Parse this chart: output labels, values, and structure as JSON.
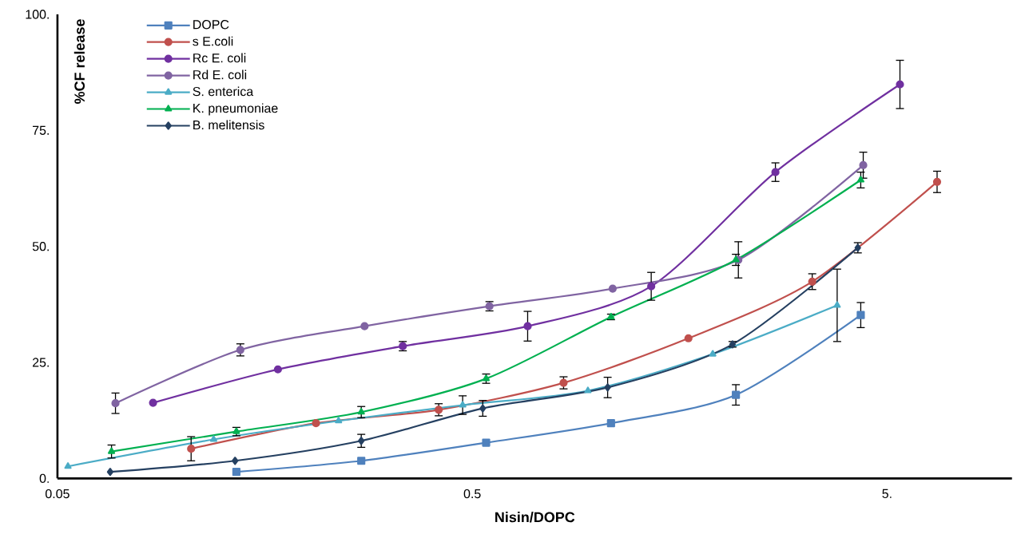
{
  "chart_data": {
    "type": "line",
    "xlabel": "Nisin/DOPC",
    "ylabel": "%CF release",
    "log": "x",
    "xlim": [
      0.05,
      10
    ],
    "xticks": [
      {
        "value": 0.05,
        "label": "0.05"
      },
      {
        "value": 0.5,
        "label": "0.5"
      },
      {
        "value": 5,
        "label": "5."
      }
    ],
    "ylim": [
      0,
      100
    ],
    "yticks": [
      {
        "value": 0,
        "label": "0."
      },
      {
        "value": 25,
        "label": "25."
      },
      {
        "value": 50,
        "label": "50."
      },
      {
        "value": 75,
        "label": "75."
      },
      {
        "value": 100,
        "label": "100."
      }
    ],
    "legend": "top left",
    "line_style": "solid",
    "series": [
      {
        "name": "DOPC",
        "color": "#4f81bd",
        "marker": "square",
        "x": [
          0.135,
          0.27,
          0.54,
          1.08,
          2.16,
          4.32
        ],
        "values": [
          1.4,
          3.8,
          7.7,
          11.9,
          18,
          35.2
        ],
        "errors": [
          null,
          null,
          null,
          null,
          2.2,
          2.7
        ]
      },
      {
        "name": "s E.coli",
        "color": "#c0504d",
        "marker": "circle",
        "x": [
          0.105,
          0.21,
          0.415,
          0.83,
          1.66,
          3.3,
          6.6
        ],
        "values": [
          6.4,
          11.9,
          14.8,
          20.6,
          30.2,
          42.4,
          63.9
        ],
        "errors": [
          2.6,
          null,
          1.3,
          1.3,
          null,
          1.7,
          2.3
        ]
      },
      {
        "name": "Rc E. coli",
        "color": "#7030a0",
        "marker": "circle",
        "x": [
          0.085,
          0.17,
          0.34,
          0.68,
          1.35,
          2.69,
          5.37
        ],
        "values": [
          16.3,
          23.5,
          28.5,
          32.8,
          41.4,
          66,
          84.9
        ],
        "errors": [
          null,
          null,
          1,
          3.2,
          3,
          2,
          5.2
        ]
      },
      {
        "name": "Rd E. coli",
        "color": "#8064a2",
        "marker": "circle",
        "x": [
          0.069,
          0.138,
          0.275,
          0.55,
          1.09,
          2.19,
          4.38
        ],
        "values": [
          16.2,
          27.7,
          32.8,
          37.1,
          40.9,
          47.1,
          67.5
        ],
        "errors": [
          2.2,
          1.3,
          null,
          1,
          null,
          3.9,
          2.8
        ]
      },
      {
        "name": "S. enterica",
        "color": "#4bacc6",
        "marker": "triangle",
        "x": [
          0.053,
          0.119,
          0.238,
          0.474,
          0.95,
          1.9,
          3.79
        ],
        "values": [
          2.6,
          8.4,
          12.4,
          15.8,
          18.9,
          26.8,
          37.3
        ],
        "errors": [
          null,
          null,
          null,
          2,
          null,
          null,
          7.8
        ]
      },
      {
        "name": "K. pneumoniae",
        "color": "#00b050",
        "marker": "triangle",
        "x": [
          0.0675,
          0.135,
          0.27,
          0.54,
          1.08,
          2.16,
          4.32
        ],
        "values": [
          5.8,
          10.1,
          14.3,
          21.5,
          34.8,
          47.1,
          64.3
        ],
        "errors": [
          1.4,
          0.9,
          1.2,
          1,
          0.6,
          1.2,
          1.7
        ]
      },
      {
        "name": "B. melitensis",
        "color": "#254061",
        "marker": "diamond",
        "x": [
          0.067,
          0.134,
          0.27,
          0.53,
          1.06,
          2.12,
          4.25
        ],
        "values": [
          1.4,
          3.8,
          8.1,
          15.1,
          19.6,
          28.9,
          49.7
        ],
        "errors": [
          null,
          null,
          1.4,
          1.7,
          2.2,
          0.6,
          1.1
        ]
      }
    ]
  }
}
